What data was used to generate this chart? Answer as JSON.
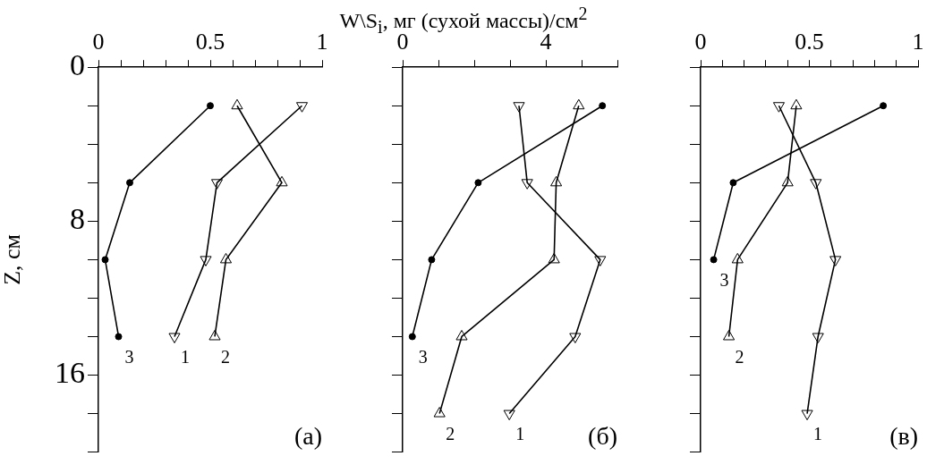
{
  "chart_data": [
    {
      "type": "line",
      "ylabel": "Z, см",
      "annotations": [
        "(а)"
      ],
      "grid": false,
      "xlim": [
        0,
        1
      ],
      "xticks": [
        0,
        {
          "value": 0.1,
          "label": null
        },
        {
          "value": 0.2,
          "label": null
        },
        {
          "value": 0.3,
          "label": null
        },
        {
          "value": 0.4,
          "label": null
        },
        0.5,
        {
          "value": 0.6,
          "label": null
        },
        {
          "value": 0.7,
          "label": null
        },
        {
          "value": 0.8,
          "label": null
        },
        {
          "value": 0.9,
          "label": null
        },
        1
      ],
      "ylim": [
        20,
        0
      ],
      "yticks": [
        0,
        {
          "value": 2,
          "label": null
        },
        {
          "value": 4,
          "label": null
        },
        {
          "value": 6,
          "label": null
        },
        8,
        {
          "value": 10,
          "label": null
        },
        {
          "value": 12,
          "label": null
        },
        {
          "value": 14,
          "label": null
        },
        16,
        {
          "value": 18,
          "label": null
        },
        {
          "value": 20,
          "label": null
        }
      ],
      "series": [
        {
          "name": "1",
          "color": "#000000",
          "marker": "triangle-down",
          "x": [
            0.91,
            0.53,
            0.48,
            0.34
          ],
          "values": [
            2,
            6,
            10,
            14
          ]
        },
        {
          "name": "2",
          "color": "#000000",
          "marker": "triangle",
          "x": [
            0.62,
            0.82,
            0.57,
            0.52
          ],
          "values": [
            2,
            6,
            10,
            14
          ]
        },
        {
          "name": "3",
          "color": "#000000",
          "marker": "circle",
          "x": [
            0.5,
            0.14,
            0.03,
            0.09
          ],
          "values": [
            2,
            6,
            10,
            14
          ]
        }
      ]
    },
    {
      "type": "line",
      "xlabel": "W\\S$_{i}$, мг (сухой массы)/см$^{2}$",
      "annotations": [
        "(б)"
      ],
      "grid": false,
      "tick_labels": "x",
      "xlim": [
        0,
        6
      ],
      "xticks": [
        0,
        {
          "value": 1,
          "label": null
        },
        {
          "value": 2,
          "label": null
        },
        {
          "value": 3,
          "label": null
        },
        4,
        {
          "value": 5,
          "label": null
        },
        {
          "value": 6,
          "label": null
        }
      ],
      "ylim": [
        20,
        0
      ],
      "yticks": [
        0,
        2,
        4,
        6,
        8,
        10,
        12,
        14,
        16,
        18,
        20
      ],
      "series": [
        {
          "name": "1",
          "color": "#000000",
          "marker": "triangle-down",
          "x": [
            3.25,
            3.48,
            5.52,
            4.82,
            2.98
          ],
          "values": [
            2,
            6,
            10,
            14,
            18
          ]
        },
        {
          "name": "2",
          "color": "#000000",
          "marker": "triangle",
          "x": [
            4.92,
            4.29,
            4.23,
            1.65,
            1.03
          ],
          "values": [
            2,
            6,
            10,
            14,
            18
          ]
        },
        {
          "name": "3",
          "color": "#000000",
          "marker": "circle",
          "x": [
            5.58,
            2.11,
            0.81,
            0.27
          ],
          "values": [
            2,
            6,
            10,
            14
          ]
        }
      ]
    },
    {
      "type": "line",
      "annotations": [
        "(в)"
      ],
      "grid": false,
      "tick_labels": "x",
      "xlim": [
        0,
        1
      ],
      "xticks": [
        0,
        {
          "value": 0.1,
          "label": null
        },
        {
          "value": 0.2,
          "label": null
        },
        {
          "value": 0.3,
          "label": null
        },
        {
          "value": 0.4,
          "label": null
        },
        0.5,
        {
          "value": 0.6,
          "label": null
        },
        {
          "value": 0.7,
          "label": null
        },
        {
          "value": 0.8,
          "label": null
        },
        {
          "value": 0.9,
          "label": null
        },
        1
      ],
      "ylim": [
        20,
        0
      ],
      "yticks": [
        0,
        2,
        4,
        6,
        8,
        10,
        12,
        14,
        16,
        18,
        20
      ],
      "series": [
        {
          "name": "1",
          "color": "#000000",
          "marker": "triangle-down",
          "x": [
            0.36,
            0.53,
            0.62,
            0.54,
            0.49
          ],
          "values": [
            2,
            6,
            10,
            14,
            18
          ]
        },
        {
          "name": "2",
          "color": "#000000",
          "marker": "triangle",
          "x": [
            0.44,
            0.4,
            0.17,
            0.13
          ],
          "values": [
            2,
            6,
            10,
            14
          ]
        },
        {
          "name": "3",
          "color": "#000000",
          "marker": "circle",
          "x": [
            0.84,
            0.15,
            0.06
          ],
          "values": [
            2,
            6,
            10
          ]
        }
      ]
    }
  ]
}
